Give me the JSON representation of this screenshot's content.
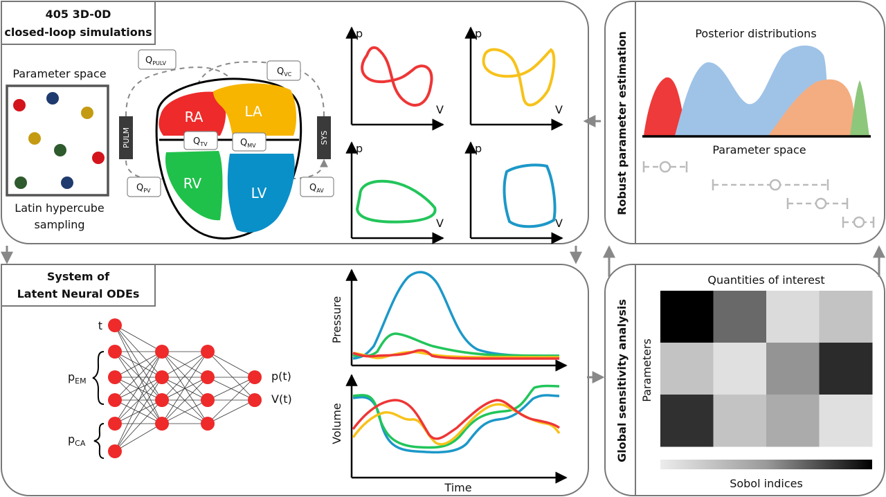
{
  "panels": {
    "simulations": {
      "title_line1": "405 3D-0D",
      "title_line2": "closed-loop simulations"
    },
    "odes": {
      "title_line1": "System of",
      "title_line2": "Latent Neural ODEs"
    },
    "estimation": {
      "title": "Robust parameter estimation"
    },
    "sensitivity": {
      "title": "Global sensitivity analysis"
    }
  },
  "sampling": {
    "title": "Parameter space",
    "caption_line1": "Latin hypercube",
    "caption_line2": "sampling",
    "dot_colors": [
      "#d4141c",
      "#1f3a6e",
      "#c49a12",
      "#c49a12",
      "#2e5a2e",
      "#d4141c",
      "#2e5a2e",
      "#1f3a6e"
    ]
  },
  "circulation": {
    "chambers": [
      {
        "label": "RA",
        "color": "#ee2a2a"
      },
      {
        "label": "LA",
        "color": "#f7b500"
      },
      {
        "label": "RV",
        "color": "#1fc14a"
      },
      {
        "label": "LV",
        "color": "#0a90c8"
      }
    ],
    "blocks": {
      "pulm": "PULM",
      "sys": "SYS"
    },
    "flows": {
      "pulv": {
        "main": "Q",
        "sub": "PULV"
      },
      "vc": {
        "main": "Q",
        "sub": "VC"
      },
      "tv": {
        "main": "Q",
        "sub": "TV"
      },
      "mv": {
        "main": "Q",
        "sub": "MV"
      },
      "pv": {
        "main": "Q",
        "sub": "PV"
      },
      "av": {
        "main": "Q",
        "sub": "AV"
      }
    }
  },
  "pv_loops": {
    "y_label": "p",
    "x_label": "V",
    "colors": [
      "#ee3636",
      "#f7c21a",
      "#22c55a",
      "#1c98c8"
    ]
  },
  "network": {
    "inputs": {
      "t": "t",
      "p_em_main": "p",
      "p_em_sub": "EM",
      "p_ca_main": "p",
      "p_ca_sub": "CA"
    },
    "outputs": {
      "pressure": "p(t)",
      "volume": "V(t)"
    },
    "layers": [
      7,
      5,
      4,
      2
    ]
  },
  "traces": {
    "pressure_label": "Pressure",
    "volume_label": "Volume",
    "time_label": "Time"
  },
  "posterior": {
    "title": "Posterior distributions",
    "axis_label": "Parameter space",
    "colors": [
      "#ee3a3a",
      "#9fc3e7",
      "#f4ad80",
      "#8dc77b"
    ]
  },
  "heatmap": {
    "title": "Quantities of interest",
    "y_label": "Parameters",
    "colorbar_label": "Sobol indices",
    "values": [
      [
        1.0,
        0.56,
        0.08,
        0.18
      ],
      [
        0.18,
        0.06,
        0.38,
        0.82
      ],
      [
        0.8,
        0.18,
        0.28,
        0.06
      ]
    ]
  }
}
